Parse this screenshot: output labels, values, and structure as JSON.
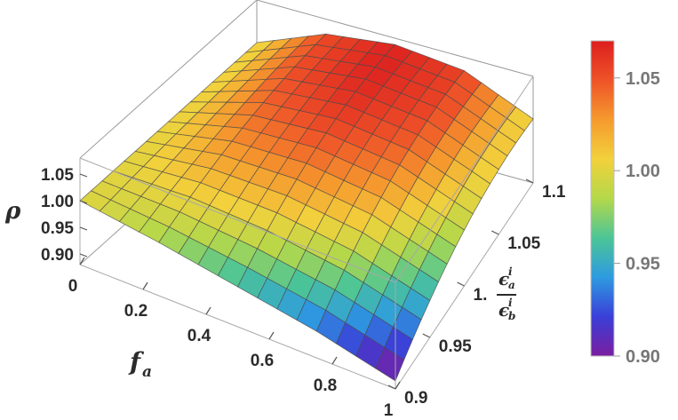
{
  "chart_data": {
    "type": "surface3d",
    "title": "",
    "x_axis": {
      "label_base": "f",
      "label_sub": "a",
      "range": [
        0,
        1
      ],
      "ticks": [
        0,
        0.2,
        0.4,
        0.6,
        0.8,
        1
      ],
      "tick_labels": [
        "0",
        "0.2",
        "0.4",
        "0.6",
        "0.8",
        "1"
      ]
    },
    "y_axis": {
      "label_num_base": "ϵ",
      "label_num_sub": "a",
      "label_num_sup": "i",
      "label_den_base": "ϵ",
      "label_den_sub": "b",
      "label_den_sup": "i",
      "range": [
        0.9,
        1.1
      ],
      "ticks": [
        0.9,
        0.95,
        1.0,
        1.05,
        1.1
      ],
      "tick_labels": [
        "0.9",
        "0.95",
        "1.",
        "1.05",
        "1.1"
      ]
    },
    "z_axis": {
      "label": "ρ",
      "range": [
        0.88,
        1.08
      ],
      "ticks": [
        0.9,
        0.95,
        1.0,
        1.05
      ],
      "tick_labels": [
        "0.90",
        "0.95",
        "1.00",
        "1.05"
      ]
    },
    "surface_samples": {
      "fa": [
        0,
        0.25,
        0.5,
        0.75,
        1
      ],
      "eps_ratio": [
        0.9,
        1.0,
        1.1
      ],
      "rho": [
        [
          1.0,
          1.0,
          1.0
        ],
        [
          0.98,
          1.035,
          1.052
        ],
        [
          0.955,
          1.045,
          1.068
        ],
        [
          0.93,
          1.03,
          1.055
        ],
        [
          0.895,
          0.985,
          1.0
        ]
      ]
    },
    "mesh": {
      "fa_lines": 16,
      "eps_lines": 16
    },
    "colorbar": {
      "range": [
        0.9,
        1.07
      ],
      "ticks": [
        0.9,
        0.95,
        1.0,
        1.05
      ],
      "tick_labels": [
        "0.90",
        "0.95",
        "1.00",
        "1.05"
      ],
      "colors": [
        "#7a1ea0",
        "#3a3fd8",
        "#2e9be0",
        "#4cc596",
        "#b4d84a",
        "#f2d13c",
        "#f59a2e",
        "#ee5328",
        "#dc1f1f"
      ]
    }
  }
}
